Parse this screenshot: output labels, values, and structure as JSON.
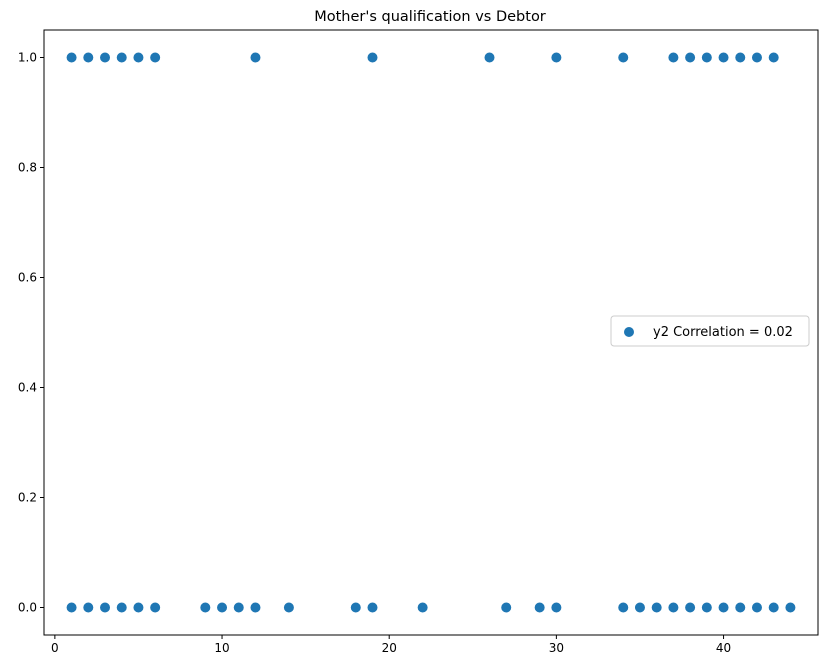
{
  "chart_data": {
    "type": "scatter",
    "title": "Mother's qualification vs Debtor",
    "xlabel": "",
    "ylabel": "",
    "xlim": [
      -0.65,
      45.65
    ],
    "ylim": [
      -0.05,
      1.05
    ],
    "x_ticks": [
      0,
      10,
      20,
      30,
      40
    ],
    "x_tick_labels": [
      "0",
      "10",
      "20",
      "30",
      "40"
    ],
    "y_ticks": [
      0.0,
      0.2,
      0.4,
      0.6,
      0.8,
      1.0
    ],
    "y_tick_labels": [
      "0.0",
      "0.2",
      "0.4",
      "0.6",
      "0.8",
      "1.0"
    ],
    "grid": false,
    "legend_position": "center-right",
    "series": [
      {
        "name": "y2 Correlation = 0.02",
        "color": "#1f77b4",
        "x": [
          1,
          2,
          3,
          4,
          5,
          6,
          12,
          19,
          26,
          30,
          34,
          37,
          38,
          39,
          40,
          41,
          42,
          43,
          1,
          2,
          3,
          4,
          5,
          6,
          9,
          10,
          11,
          12,
          14,
          18,
          19,
          22,
          27,
          29,
          30,
          34,
          35,
          36,
          37,
          38,
          39,
          40,
          41,
          42,
          43,
          44
        ],
        "y": [
          1,
          1,
          1,
          1,
          1,
          1,
          1,
          1,
          1,
          1,
          1,
          1,
          1,
          1,
          1,
          1,
          1,
          1,
          0,
          0,
          0,
          0,
          0,
          0,
          0,
          0,
          0,
          0,
          0,
          0,
          0,
          0,
          0,
          0,
          0,
          0,
          0,
          0,
          0,
          0,
          0,
          0,
          0,
          0,
          0,
          0
        ]
      }
    ]
  }
}
